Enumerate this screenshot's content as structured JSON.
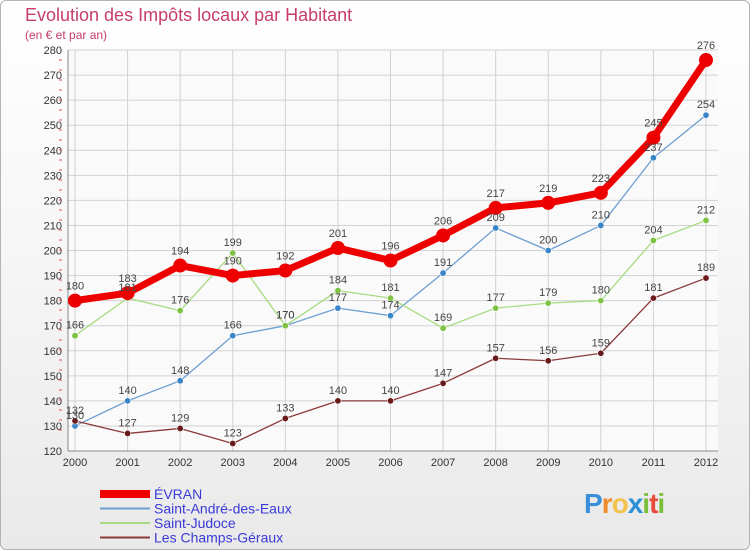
{
  "header": {
    "title": "Evolution des Impôts locaux par Habitant",
    "subtitle": "(en € et par an)"
  },
  "logo": {
    "text": "Proxiti",
    "letter_colors": [
      "#3b8ed8",
      "#f28c28",
      "#f2c14e",
      "#2a8fd6",
      "#7cbf3a",
      "#e94a3a",
      "#7cbf3a"
    ]
  },
  "chart_data": {
    "type": "line",
    "title": "Evolution des Impôts locaux par Habitant",
    "subtitle": "(en € et par an)",
    "xlabel": "",
    "ylabel": "",
    "ylim": [
      120,
      280
    ],
    "ytick_step": 10,
    "grid": true,
    "legend_position": "bottom-left",
    "x": [
      "2000",
      "2001",
      "2002",
      "2003",
      "2004",
      "2005",
      "2006",
      "2007",
      "2008",
      "2009",
      "2010",
      "2011",
      "2012"
    ],
    "series": [
      {
        "name": "ÉVRAN",
        "color": "#ee0000",
        "marker": "#ee0000",
        "width": 7,
        "values": [
          180,
          183,
          194,
          190,
          192,
          201,
          196,
          206,
          217,
          219,
          223,
          245,
          276
        ]
      },
      {
        "name": "Saint-André-des-Eaux",
        "color": "#6e9fd0",
        "marker": "#3a86c8",
        "width": 1.3,
        "values": [
          130,
          140,
          148,
          166,
          170,
          177,
          174,
          191,
          209,
          200,
          210,
          237,
          254
        ]
      },
      {
        "name": "Saint-Judoce",
        "color": "#a8db80",
        "marker": "#7dc242",
        "width": 1.3,
        "values": [
          166,
          181,
          176,
          199,
          170,
          184,
          181,
          169,
          177,
          179,
          180,
          204,
          212
        ]
      },
      {
        "name": "Les Champs-Géraux",
        "color": "#8b3a3a",
        "marker": "#6a1a1a",
        "width": 1.3,
        "values": [
          132,
          127,
          129,
          123,
          133,
          140,
          140,
          147,
          157,
          156,
          159,
          181,
          189
        ]
      }
    ]
  }
}
